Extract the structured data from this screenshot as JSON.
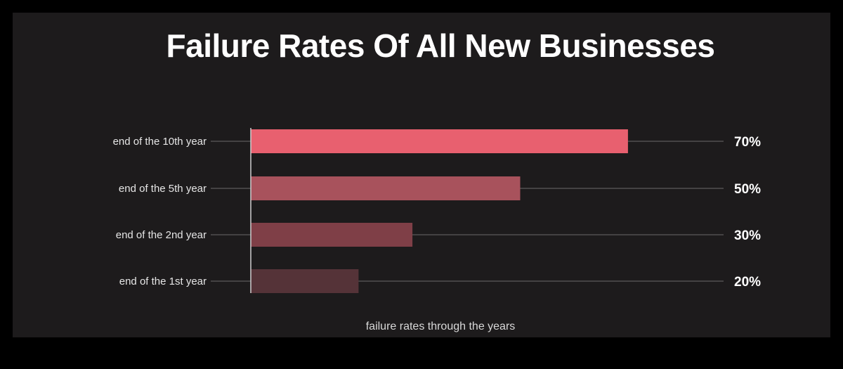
{
  "title": "Failure Rates Of All New Businesses",
  "chart_data": {
    "type": "bar",
    "orientation": "horizontal",
    "title": "Failure Rates Of All New Businesses",
    "xlabel": "failure rates through the years",
    "ylabel": "",
    "categories": [
      "end of the 10th year",
      "end of the 5th year",
      "end of the 2nd year",
      "end of the 1st year"
    ],
    "values": [
      70,
      50,
      30,
      20
    ],
    "value_labels": [
      "70%",
      "50%",
      "30%",
      "20%"
    ],
    "xlim": [
      0,
      100
    ],
    "unit": "%",
    "grid": false,
    "legend": "none",
    "bar_colors": [
      "#e8606f",
      "#a8525c",
      "#7f3f47",
      "#553338"
    ]
  },
  "colors": {
    "background": "#1d1b1c",
    "frame": "#000000",
    "text": "#ffffff"
  }
}
